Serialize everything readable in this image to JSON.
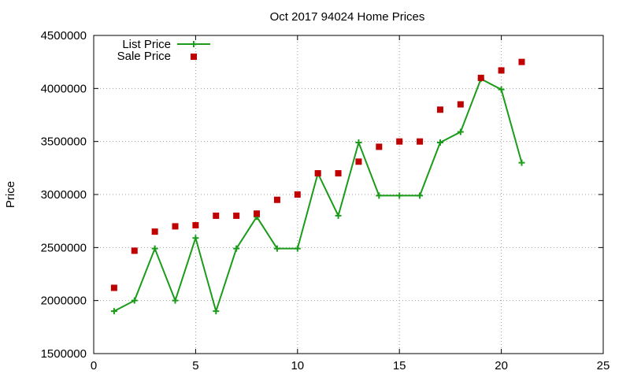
{
  "chart_data": {
    "type": "line",
    "title": "Oct 2017 94024 Home Prices",
    "xlabel": "",
    "ylabel": "Price",
    "xlim": [
      0,
      25
    ],
    "ylim": [
      1500000,
      4500000
    ],
    "x_ticks": [
      "0",
      "5",
      "10",
      "15",
      "20",
      "25"
    ],
    "y_ticks": [
      "1500000",
      "2000000",
      "2500000",
      "3000000",
      "3500000",
      "4000000",
      "4500000"
    ],
    "grid": true,
    "legend_position": "top-left",
    "series": [
      {
        "name": "List Price",
        "style": "line-with-plus-markers",
        "color": "#1a9c1a",
        "points": [
          [
            1,
            1900000
          ],
          [
            2,
            2000000
          ],
          [
            3,
            2490000
          ],
          [
            4,
            2000000
          ],
          [
            5,
            2590000
          ],
          [
            6,
            1900000
          ],
          [
            7,
            2490000
          ],
          [
            8,
            2790000
          ],
          [
            9,
            2490000
          ],
          [
            10,
            2490000
          ],
          [
            11,
            3200000
          ],
          [
            12,
            2800000
          ],
          [
            13,
            3490000
          ],
          [
            14,
            2990000
          ],
          [
            15,
            2990000
          ],
          [
            16,
            2990000
          ],
          [
            17,
            3490000
          ],
          [
            18,
            3590000
          ],
          [
            19,
            4090000
          ],
          [
            20,
            3990000
          ],
          [
            21,
            3300000
          ]
        ]
      },
      {
        "name": "Sale Price",
        "style": "square-markers",
        "color": "#c00000",
        "points": [
          [
            1,
            2120000
          ],
          [
            2,
            2470000
          ],
          [
            3,
            2650000
          ],
          [
            4,
            2700000
          ],
          [
            5,
            2710000
          ],
          [
            6,
            2800000
          ],
          [
            7,
            2800000
          ],
          [
            8,
            2820000
          ],
          [
            9,
            2950000
          ],
          [
            10,
            3000000
          ],
          [
            11,
            3200000
          ],
          [
            12,
            3200000
          ],
          [
            13,
            3310000
          ],
          [
            14,
            3450000
          ],
          [
            15,
            3500000
          ],
          [
            16,
            3500000
          ],
          [
            17,
            3800000
          ],
          [
            18,
            3850000
          ],
          [
            19,
            4100000
          ],
          [
            20,
            4170000
          ],
          [
            21,
            4250000
          ]
        ]
      }
    ]
  }
}
